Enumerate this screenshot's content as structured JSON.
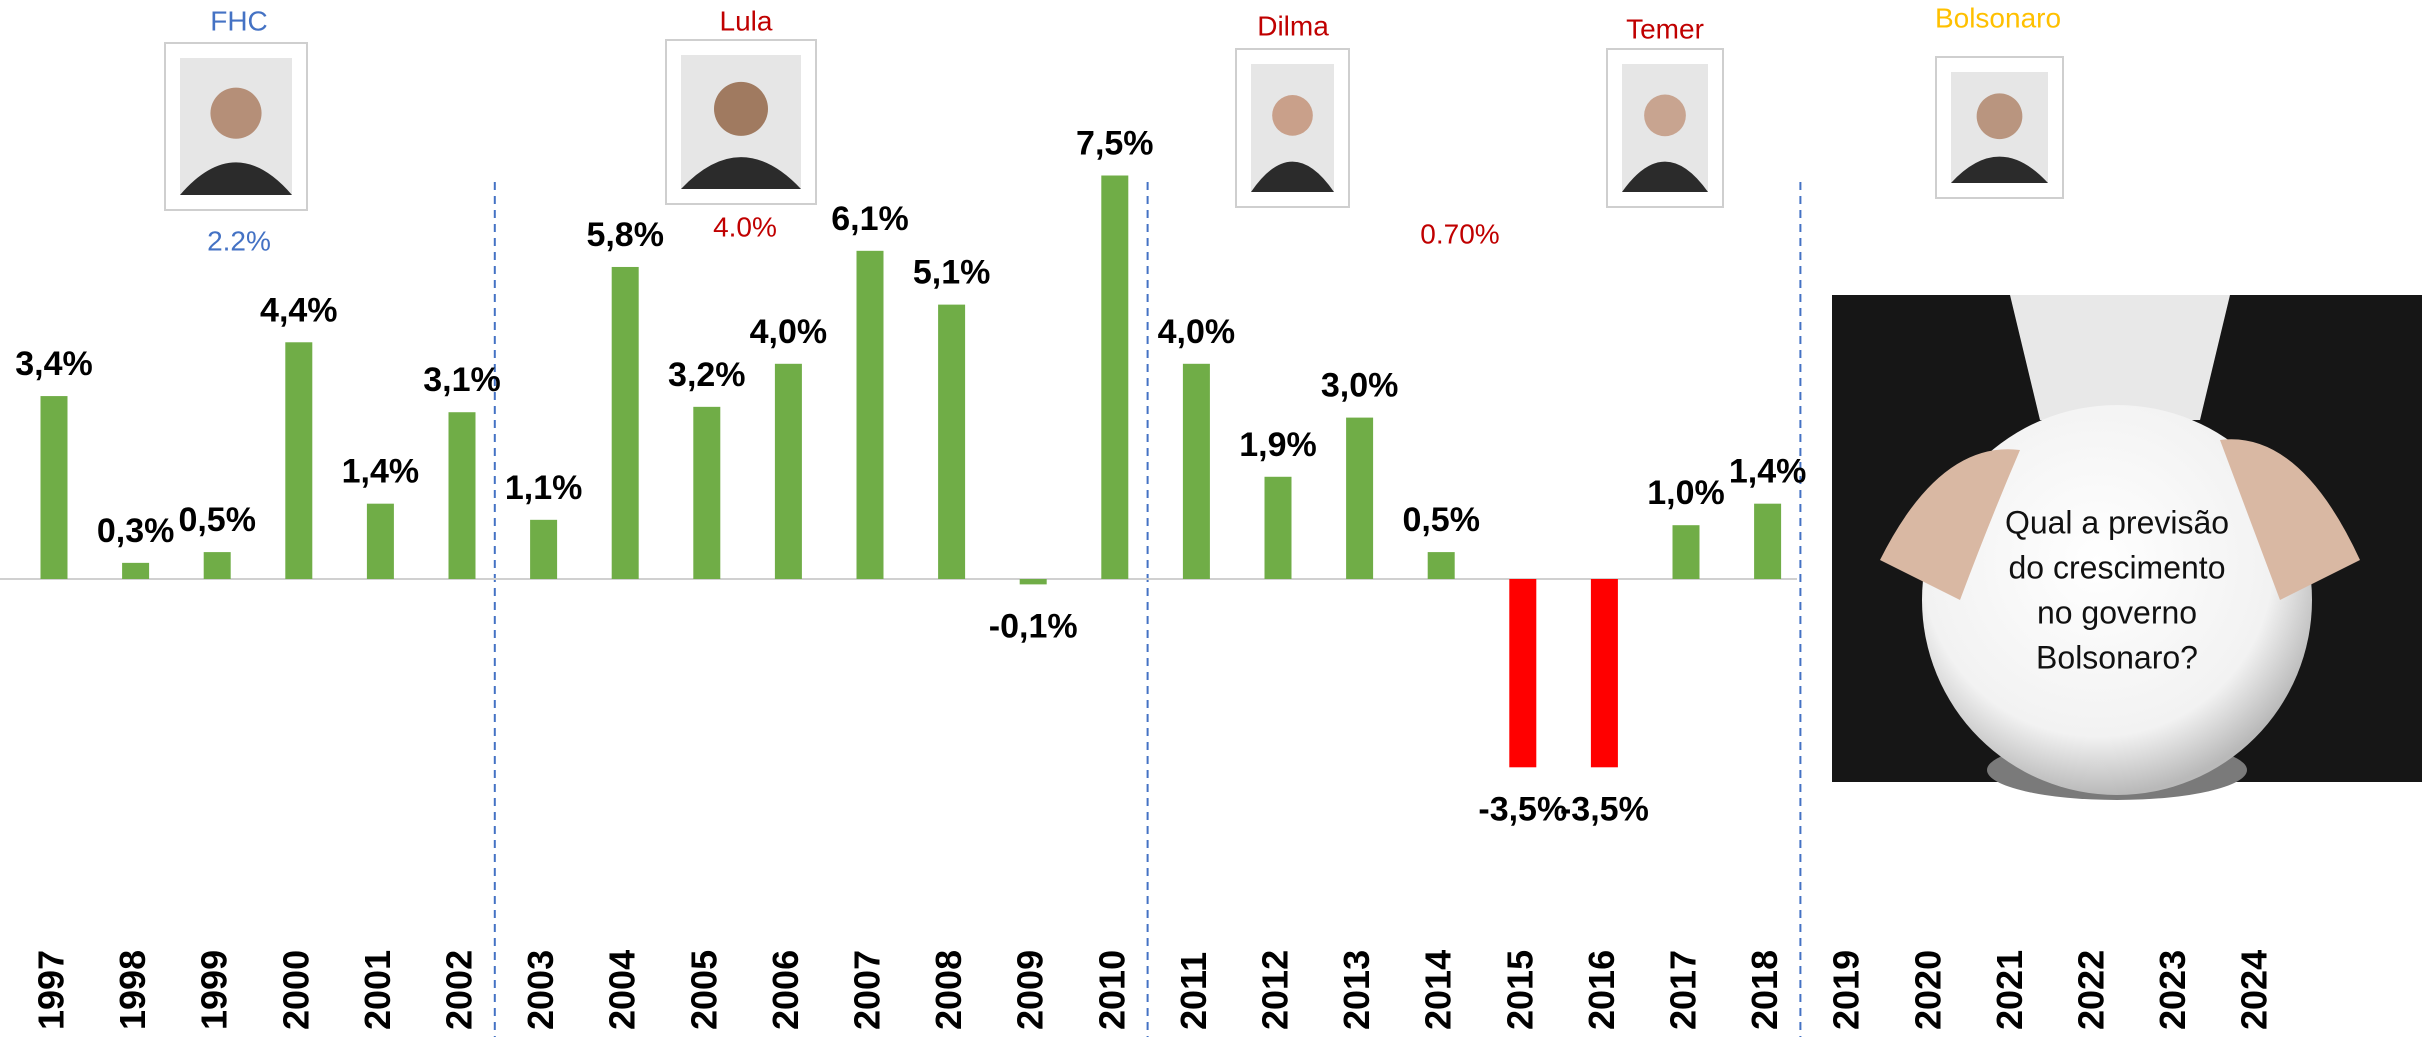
{
  "chart_data": {
    "type": "bar",
    "categories": [
      "1997",
      "1998",
      "1999",
      "2000",
      "2001",
      "2002",
      "2003",
      "2004",
      "2005",
      "2006",
      "2007",
      "2008",
      "2009",
      "2010",
      "2011",
      "2012",
      "2013",
      "2014",
      "2015",
      "2016",
      "2017",
      "2018",
      "2019",
      "2020",
      "2021",
      "2022",
      "2023",
      "2024"
    ],
    "values": [
      3.4,
      0.3,
      0.5,
      4.4,
      1.4,
      3.1,
      1.1,
      5.8,
      3.2,
      4.0,
      6.1,
      5.1,
      -0.1,
      7.5,
      4.0,
      1.9,
      3.0,
      0.5,
      -3.5,
      -3.5,
      1.0,
      1.4,
      null,
      null,
      null,
      null,
      null,
      null
    ],
    "value_labels": [
      "3,4%",
      "0,3%",
      "0,5%",
      "4,4%",
      "1,4%",
      "3,1%",
      "1,1%",
      "5,8%",
      "3,2%",
      "4,0%",
      "6,1%",
      "5,1%",
      "-0,1%",
      "7,5%",
      "4,0%",
      "1,9%",
      "3,0%",
      "0,5%",
      "-3,5%",
      "-3,5%",
      "1,0%",
      "1,4%",
      null,
      null,
      null,
      null,
      null,
      null
    ],
    "colors": [
      "#70ad47",
      "#70ad47",
      "#70ad47",
      "#70ad47",
      "#70ad47",
      "#70ad47",
      "#70ad47",
      "#70ad47",
      "#70ad47",
      "#70ad47",
      "#70ad47",
      "#70ad47",
      "#70ad47",
      "#70ad47",
      "#70ad47",
      "#70ad47",
      "#70ad47",
      "#70ad47",
      "#ff0000",
      "#ff0000",
      "#70ad47",
      "#70ad47",
      null,
      null,
      null,
      null,
      null,
      null
    ],
    "presidents": [
      {
        "name": "FHC",
        "color": "#4472c4"
      },
      {
        "name": "Lula",
        "color": "#c00000"
      },
      {
        "name": "Dilma",
        "color": "#c00000"
      },
      {
        "name": "Temer",
        "color": "#c00000"
      },
      {
        "name": "Bolsonaro",
        "color": "#ffc000"
      }
    ],
    "averages": [
      {
        "text": "2.2%",
        "color": "#4472c4"
      },
      {
        "text": "4.0%",
        "color": "#c00000"
      },
      {
        "text": "0.70%",
        "color": "#c00000"
      }
    ],
    "question": [
      "Qual a previsão",
      "do crescimento",
      "no governo",
      "Bolsonaro?"
    ]
  }
}
